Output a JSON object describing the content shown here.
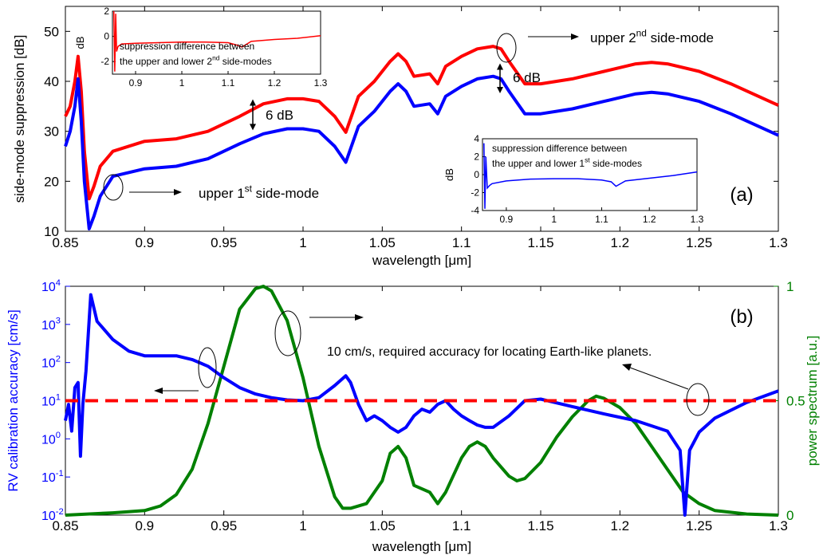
{
  "chart_data": [
    {
      "panel": "a",
      "type": "line",
      "xlabel": "wavelength [μm]",
      "ylabel": "side-mode suppression [dB]",
      "xlim": [
        0.85,
        1.3
      ],
      "ylim": [
        10,
        55
      ],
      "xticks": [
        "0.85",
        "0.9",
        "0.95",
        "1",
        "1.05",
        "1.1",
        "1.15",
        "1.2",
        "1.25",
        "1.3"
      ],
      "yticks": [
        "10",
        "20",
        "30",
        "40",
        "50"
      ],
      "panel_label": "(a)",
      "series": [
        {
          "color": "#ff0000",
          "x": [
            0.85,
            0.853,
            0.856,
            0.858,
            0.86,
            0.862,
            0.865,
            0.868,
            0.872,
            0.88,
            0.9,
            0.92,
            0.94,
            0.96,
            0.975,
            0.99,
            1.0,
            1.01,
            1.02,
            1.027,
            1.035,
            1.045,
            1.055,
            1.06,
            1.065,
            1.07,
            1.08,
            1.085,
            1.09,
            1.1,
            1.11,
            1.12,
            1.125,
            1.13,
            1.14,
            1.15,
            1.17,
            1.19,
            1.21,
            1.22,
            1.23,
            1.25,
            1.27,
            1.3
          ],
          "y": [
            33,
            35,
            40,
            45,
            38,
            26,
            16.5,
            19,
            23,
            26,
            28,
            28.5,
            30,
            33,
            35.5,
            36.5,
            36.5,
            36,
            33,
            29.8,
            37,
            40,
            44,
            45.5,
            44,
            41,
            41.5,
            39.5,
            43,
            45,
            46.5,
            47,
            46.5,
            44,
            39.5,
            39.5,
            40.5,
            42,
            43.5,
            43.8,
            43.5,
            42,
            39.5,
            35.2
          ]
        },
        {
          "color": "#0000ff",
          "x": [
            0.85,
            0.853,
            0.856,
            0.858,
            0.86,
            0.862,
            0.865,
            0.868,
            0.872,
            0.88,
            0.9,
            0.92,
            0.94,
            0.96,
            0.975,
            0.99,
            1.0,
            1.01,
            1.02,
            1.027,
            1.035,
            1.045,
            1.055,
            1.06,
            1.065,
            1.07,
            1.08,
            1.085,
            1.09,
            1.1,
            1.11,
            1.12,
            1.125,
            1.13,
            1.14,
            1.15,
            1.17,
            1.19,
            1.21,
            1.22,
            1.23,
            1.25,
            1.27,
            1.3
          ],
          "y": [
            27,
            30,
            35,
            40.5,
            32,
            20,
            10.5,
            13,
            17,
            21,
            22.5,
            23,
            24.5,
            27.5,
            29.5,
            30.5,
            30.5,
            30,
            27,
            23.8,
            31,
            34,
            38,
            39.5,
            38,
            35,
            35.5,
            33.5,
            37,
            39,
            40.5,
            41,
            40.5,
            38,
            33.5,
            33.5,
            34.5,
            36,
            37.5,
            37.8,
            37.5,
            36,
            33.5,
            29.2
          ]
        }
      ],
      "annotations": [
        {
          "text": "6 dB"
        },
        {
          "text": "6 dB"
        },
        {
          "text": "upper 1",
          "sup": "st",
          "tail": " side-mode"
        },
        {
          "text": "upper 2",
          "sup": "nd",
          "tail": " side-mode"
        }
      ],
      "insets": [
        {
          "ylabel": "dB",
          "xlim": [
            0.85,
            1.3
          ],
          "ylim": [
            -3,
            2
          ],
          "xticks": [
            "0.9",
            "1",
            "1.1",
            "1.2",
            "1.3"
          ],
          "yticks": [
            "-2",
            "0",
            "2"
          ],
          "text_line1": "suppression difference between",
          "text_line2": "the upper and lower 2",
          "text_sup": "nd",
          "text_tail": " side-modes",
          "series": {
            "color": "#ff0000",
            "x": [
              0.853,
              0.855,
              0.857,
              0.859,
              0.862,
              0.87,
              0.9,
              0.95,
              1.0,
              1.05,
              1.1,
              1.12,
              1.13,
              1.15,
              1.2,
              1.25,
              1.3
            ],
            "y": [
              2,
              -2.8,
              1.8,
              -1.2,
              -0.8,
              -0.6,
              -0.55,
              -0.5,
              -0.45,
              -0.45,
              -0.5,
              -0.7,
              -0.85,
              -0.4,
              -0.25,
              -0.15,
              0.05
            ]
          }
        },
        {
          "ylabel": "dB",
          "xlim": [
            0.85,
            1.3
          ],
          "ylim": [
            -4,
            4
          ],
          "xticks": [
            "0.9",
            "1",
            "1.1",
            "1.2",
            "1.3"
          ],
          "yticks": [
            "-4",
            "-2",
            "0",
            "2",
            "4"
          ],
          "text_line1": "suppression difference between",
          "text_line2": "the upper and lower 1",
          "text_sup": "st",
          "text_tail": " side-modes",
          "series": {
            "color": "#0000ff",
            "x": [
              0.853,
              0.855,
              0.857,
              0.86,
              0.865,
              0.87,
              0.9,
              0.95,
              1.0,
              1.05,
              1.1,
              1.12,
              1.13,
              1.15,
              1.2,
              1.25,
              1.3
            ],
            "y": [
              3.5,
              -3.8,
              2,
              -1.5,
              -1.2,
              -1.0,
              -0.7,
              -0.5,
              -0.45,
              -0.45,
              -0.6,
              -0.8,
              -1.3,
              -0.7,
              -0.4,
              -0.1,
              0.3
            ]
          }
        }
      ]
    },
    {
      "panel": "b",
      "type": "line",
      "xlabel": "wavelength [μm]",
      "ylabel_left": "RV calibration accuracy [cm/s]",
      "ylabel_right": "power spectrum [a.u.]",
      "xlim": [
        0.85,
        1.3
      ],
      "ylim_left_log10": [
        -2,
        4
      ],
      "ylim_right": [
        0,
        1
      ],
      "xticks": [
        "0.85",
        "0.9",
        "0.95",
        "1",
        "1.05",
        "1.1",
        "1.15",
        "1.2",
        "1.25",
        "1.3"
      ],
      "yticks_left": [
        {
          "base": "10",
          "exp": "-2"
        },
        {
          "base": "10",
          "exp": "-1"
        },
        {
          "base": "10",
          "exp": "0"
        },
        {
          "base": "10",
          "exp": "1"
        },
        {
          "base": "10",
          "exp": "2"
        },
        {
          "base": "10",
          "exp": "3"
        },
        {
          "base": "10",
          "exp": "4"
        }
      ],
      "yticks_right": [
        "0",
        "0.5",
        "1"
      ],
      "panel_label": "(b)",
      "annotation": "10 cm/s, required accuracy for locating Earth-like planets.",
      "reference_line": {
        "value": 10,
        "color": "#ff0000",
        "style": "dashed"
      },
      "series": [
        {
          "name": "",
          "axis": "left",
          "color": "#0000ff",
          "x": [
            0.85,
            0.852,
            0.854,
            0.856,
            0.858,
            0.8595,
            0.861,
            0.863,
            0.866,
            0.87,
            0.88,
            0.89,
            0.9,
            0.92,
            0.93,
            0.94,
            0.95,
            0.96,
            0.97,
            0.98,
            0.99,
            1.0,
            1.01,
            1.02,
            1.027,
            1.03,
            1.035,
            1.04,
            1.045,
            1.05,
            1.055,
            1.06,
            1.065,
            1.07,
            1.075,
            1.08,
            1.085,
            1.09,
            1.095,
            1.1,
            1.105,
            1.11,
            1.115,
            1.12,
            1.13,
            1.14,
            1.15,
            1.17,
            1.19,
            1.21,
            1.23,
            1.238,
            1.241,
            1.244,
            1.25,
            1.26,
            1.28,
            1.3
          ],
          "y": [
            3,
            8,
            1.6,
            22,
            30,
            0.35,
            8,
            60,
            6000,
            1200,
            400,
            200,
            150,
            150,
            120,
            80,
            40,
            22,
            15,
            12,
            10.5,
            10,
            12,
            25,
            45,
            30,
            8,
            3,
            4,
            3,
            2,
            1.5,
            2,
            4,
            6,
            5,
            8,
            10,
            6,
            4,
            3,
            2.3,
            2,
            2,
            4,
            10,
            11,
            7,
            4.5,
            3,
            1.6,
            0.5,
            0.01,
            0.5,
            1.5,
            3.5,
            9,
            18
          ]
        },
        {
          "name": "",
          "axis": "right",
          "color": "#008000",
          "x": [
            0.85,
            0.88,
            0.9,
            0.91,
            0.92,
            0.93,
            0.94,
            0.95,
            0.96,
            0.97,
            0.975,
            0.98,
            0.99,
            1.0,
            1.01,
            1.02,
            1.025,
            1.03,
            1.04,
            1.05,
            1.055,
            1.06,
            1.065,
            1.07,
            1.08,
            1.085,
            1.09,
            1.1,
            1.105,
            1.11,
            1.115,
            1.12,
            1.13,
            1.135,
            1.14,
            1.15,
            1.16,
            1.17,
            1.18,
            1.185,
            1.19,
            1.2,
            1.21,
            1.22,
            1.23,
            1.24,
            1.25,
            1.26,
            1.28,
            1.3
          ],
          "y": [
            0,
            0.01,
            0.02,
            0.04,
            0.09,
            0.2,
            0.4,
            0.65,
            0.9,
            0.99,
            1.0,
            0.98,
            0.85,
            0.6,
            0.3,
            0.08,
            0.03,
            0.03,
            0.05,
            0.15,
            0.27,
            0.3,
            0.25,
            0.13,
            0.1,
            0.05,
            0.1,
            0.25,
            0.3,
            0.32,
            0.3,
            0.25,
            0.17,
            0.15,
            0.16,
            0.23,
            0.34,
            0.43,
            0.5,
            0.52,
            0.51,
            0.47,
            0.4,
            0.3,
            0.2,
            0.1,
            0.05,
            0.02,
            0.005,
            0
          ]
        }
      ]
    }
  ]
}
